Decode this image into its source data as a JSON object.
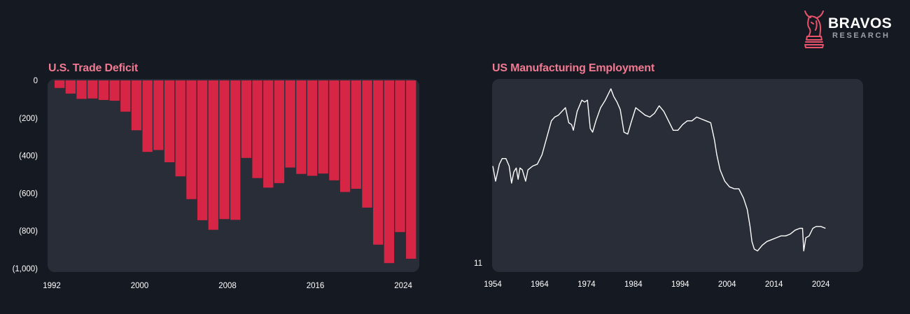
{
  "brand": {
    "name": "BRAVOS",
    "tagline": "RESEARCH",
    "accent": "#e8536b"
  },
  "colors": {
    "background": "#151921",
    "panel": "#292d38",
    "bar": "#d72545",
    "line": "#ffffff",
    "title": "#f07a92"
  },
  "chart_data": [
    {
      "type": "bar",
      "title": "U.S. Trade Deficit",
      "xlabel": "",
      "ylabel": "",
      "categories": [
        1992,
        1993,
        1994,
        1995,
        1996,
        1997,
        1998,
        1999,
        2000,
        2001,
        2002,
        2003,
        2004,
        2005,
        2006,
        2007,
        2008,
        2009,
        2010,
        2011,
        2012,
        2013,
        2014,
        2015,
        2016,
        2017,
        2018,
        2019,
        2020,
        2021,
        2022,
        2023,
        2024
      ],
      "values": [
        -40,
        -70,
        -98,
        -96,
        -104,
        -108,
        -166,
        -265,
        -380,
        -370,
        -435,
        -510,
        -631,
        -743,
        -794,
        -737,
        -741,
        -412,
        -519,
        -570,
        -546,
        -463,
        -497,
        -507,
        -495,
        -531,
        -593,
        -576,
        -676,
        -873,
        -971,
        -806,
        -948
      ],
      "ylim": [
        -1000,
        0
      ],
      "yticks": [
        0,
        -200,
        -400,
        -600,
        -800,
        -1000
      ],
      "ytick_labels": [
        "0",
        "(200)",
        "(400)",
        "(600)",
        "(800)",
        "(1,000)"
      ],
      "xticks": [
        1992,
        2000,
        2008,
        2016,
        2024
      ],
      "xtick_labels": [
        "1992",
        "2000",
        "2008",
        "2016",
        "2024"
      ]
    },
    {
      "type": "line",
      "title": "US Manufacturing Employment",
      "xlabel": "",
      "ylabel": "",
      "xlim": [
        1954,
        2026
      ],
      "ylim": [
        11,
        20.2
      ],
      "yticks": [
        11
      ],
      "ytick_labels": [
        "11"
      ],
      "xticks": [
        1954,
        1964,
        1974,
        1984,
        1994,
        2004,
        2014,
        2024
      ],
      "xtick_labels": [
        "1954",
        "1964",
        "1974",
        "1984",
        "1994",
        "2004",
        "2014",
        "2024"
      ],
      "series": [
        {
          "name": "US Manufacturing Employment",
          "x": [
            1954,
            1954.6,
            1955.4,
            1956,
            1956.8,
            1957.5,
            1958,
            1958.5,
            1959,
            1959.4,
            1959.8,
            1960.3,
            1961,
            1961.5,
            1962.5,
            1963.5,
            1964.5,
            1965.5,
            1966.5,
            1967.2,
            1968,
            1969.5,
            1970.2,
            1970.8,
            1971.2,
            1972,
            1973,
            1973.6,
            1974.2,
            1974.8,
            1975.3,
            1976,
            1977,
            1978,
            1979.2,
            1979.8,
            1980.5,
            1981.2,
            1982,
            1982.8,
            1983.5,
            1984.5,
            1985.5,
            1986.5,
            1987.5,
            1988.5,
            1989.5,
            1990.5,
            1991.5,
            1992.5,
            1993.5,
            1994.5,
            1995.5,
            1996.5,
            1997.5,
            1998.5,
            1999.5,
            2000.5,
            2001.3,
            2001.8,
            2002.5,
            2003.5,
            2004.5,
            2005.5,
            2006.5,
            2007.5,
            2008.3,
            2008.9,
            2009.3,
            2009.8,
            2010.5,
            2011.5,
            2012.5,
            2013.5,
            2014.5,
            2015.5,
            2016.5,
            2017.5,
            2018.5,
            2019.5,
            2020.1,
            2020.35,
            2020.8,
            2021.5,
            2022.3,
            2023,
            2024,
            2025
          ],
          "y": [
            16.1,
            15.3,
            16.2,
            16.5,
            16.5,
            16.1,
            15.2,
            15.8,
            16.0,
            15.4,
            16.0,
            15.9,
            15.3,
            15.9,
            16.1,
            16.2,
            16.7,
            17.6,
            18.5,
            18.7,
            18.8,
            19.2,
            18.4,
            18.3,
            18.0,
            19.0,
            19.6,
            19.5,
            19.6,
            18.1,
            17.9,
            18.5,
            19.2,
            19.6,
            20.2,
            19.8,
            19.5,
            19.1,
            17.9,
            17.8,
            18.4,
            19.2,
            19.0,
            18.8,
            18.7,
            18.9,
            19.3,
            19.0,
            18.5,
            18.0,
            18.0,
            18.3,
            18.5,
            18.5,
            18.7,
            18.6,
            18.5,
            18.4,
            17.5,
            16.7,
            15.9,
            15.3,
            15.0,
            14.9,
            14.9,
            14.4,
            13.8,
            12.9,
            12.1,
            11.7,
            11.6,
            11.9,
            12.1,
            12.2,
            12.3,
            12.4,
            12.4,
            12.5,
            12.7,
            12.8,
            12.8,
            11.6,
            12.3,
            12.4,
            12.8,
            12.9,
            12.9,
            12.8
          ]
        }
      ]
    }
  ]
}
